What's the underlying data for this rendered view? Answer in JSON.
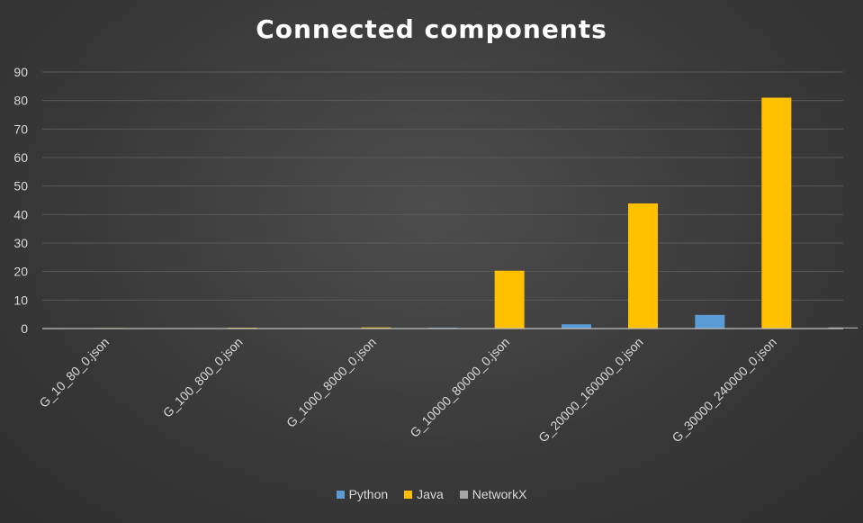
{
  "chart_data": {
    "type": "bar",
    "title": "Connected components",
    "categories": [
      "G_10_80_0.json",
      "G_100_800_0.json",
      "G_1000_8000_0.json",
      "G_10000_80000_0.json",
      "G_20000_160000_0.json",
      "G_30000_240000_0.json"
    ],
    "series": [
      {
        "name": "Python",
        "color": "#5b9bd5",
        "values": [
          0.0,
          0.0,
          0.05,
          0.3,
          1.5,
          4.8
        ]
      },
      {
        "name": "Java",
        "color": "#ffc000",
        "values": [
          0.2,
          0.3,
          0.4,
          20.3,
          43.9,
          81.0
        ]
      },
      {
        "name": "NetworkX",
        "color": "#a5a5a5",
        "values": [
          0.0,
          0.1,
          0.1,
          0.2,
          0.3,
          0.4
        ]
      }
    ],
    "ylim": [
      0,
      90
    ],
    "yticks": [
      0,
      10,
      20,
      30,
      40,
      50,
      60,
      70,
      80,
      90
    ],
    "grid": true,
    "legend_position": "bottom"
  }
}
